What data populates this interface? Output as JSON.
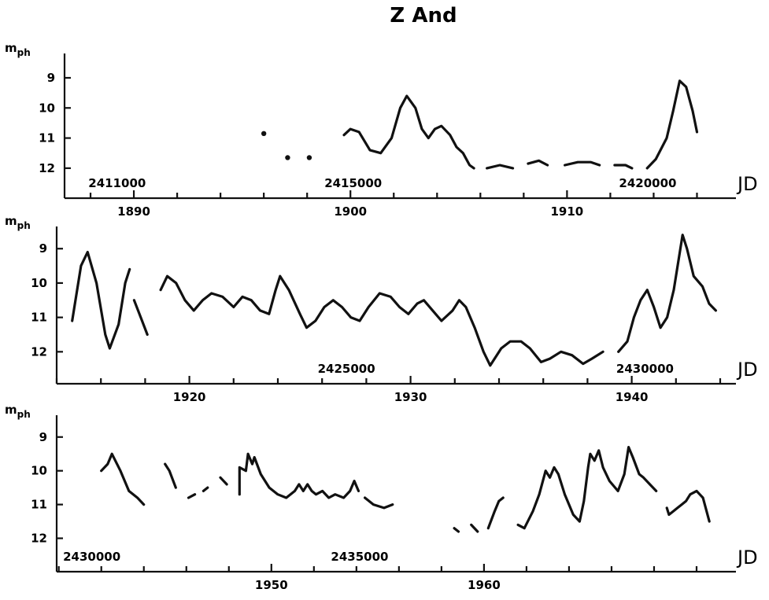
{
  "chart_data": {
    "type": "line",
    "title": "Z And",
    "x_unit_label": "JD",
    "panels": [
      {
        "ylabel": "m",
        "ylabel_sub": "ph",
        "xlim": [
          1886.8,
          1917.0
        ],
        "ylim_inverted": [
          12.5,
          8.4
        ],
        "yticks": [
          "9",
          "10",
          "11",
          "12"
        ],
        "xtick_labels": [
          {
            "x": 1890,
            "label": "1890"
          },
          {
            "x": 1900,
            "label": "1900"
          },
          {
            "x": 1910,
            "label": "1910"
          }
        ],
        "jd_labels": [
          {
            "x": 1887.9,
            "label": "2411000"
          },
          {
            "x": 1898.8,
            "label": "2415000"
          },
          {
            "x": 1912.4,
            "label": "2420000"
          }
        ],
        "points": [
          [
            1896.0,
            10.85
          ],
          [
            1897.1,
            11.65
          ],
          [
            1898.1,
            11.65
          ]
        ],
        "series": [
          [
            [
              1899.7,
              10.9
            ],
            [
              1900.0,
              10.7
            ],
            [
              1900.4,
              10.8
            ],
            [
              1900.9,
              11.4
            ],
            [
              1901.4,
              11.5
            ],
            [
              1901.9,
              11.0
            ],
            [
              1902.3,
              10.0
            ],
            [
              1902.6,
              9.6
            ],
            [
              1903.0,
              10.0
            ],
            [
              1903.3,
              10.7
            ],
            [
              1903.6,
              11.0
            ],
            [
              1903.9,
              10.7
            ],
            [
              1904.2,
              10.6
            ],
            [
              1904.6,
              10.9
            ],
            [
              1904.9,
              11.3
            ],
            [
              1905.2,
              11.5
            ],
            [
              1905.5,
              11.9
            ],
            [
              1905.7,
              12.0
            ]
          ],
          [
            [
              1906.3,
              12.0
            ],
            [
              1906.9,
              11.9
            ],
            [
              1907.5,
              12.0
            ]
          ],
          [
            [
              1908.2,
              11.85
            ],
            [
              1908.7,
              11.75
            ],
            [
              1909.1,
              11.9
            ]
          ],
          [
            [
              1909.9,
              11.9
            ],
            [
              1910.5,
              11.8
            ],
            [
              1911.1,
              11.8
            ],
            [
              1911.5,
              11.9
            ]
          ],
          [
            [
              1912.2,
              11.9
            ],
            [
              1912.7,
              11.9
            ],
            [
              1913.0,
              12.0
            ]
          ],
          [
            [
              1913.7,
              12.0
            ],
            [
              1914.1,
              11.7
            ],
            [
              1914.6,
              11.0
            ],
            [
              1914.9,
              10.1
            ],
            [
              1915.2,
              9.1
            ],
            [
              1915.5,
              9.3
            ],
            [
              1915.8,
              10.1
            ],
            [
              1916.0,
              10.8
            ]
          ]
        ]
      },
      {
        "ylabel": "m",
        "ylabel_sub": "ph",
        "xlim": [
          1914.0,
          1944.0
        ],
        "ylim_inverted": [
          12.45,
          8.4
        ],
        "yticks": [
          "9",
          "10",
          "11",
          "12"
        ],
        "xtick_labels": [
          {
            "x": 1920,
            "label": "1920"
          },
          {
            "x": 1930,
            "label": "1930"
          },
          {
            "x": 1940,
            "label": "1940"
          }
        ],
        "jd_labels": [
          {
            "x": 1925.8,
            "label": "2425000"
          },
          {
            "x": 1939.3,
            "label": "2430000"
          }
        ],
        "points": [],
        "series": [
          [
            [
              1914.7,
              11.1
            ],
            [
              1915.1,
              9.5
            ],
            [
              1915.4,
              9.1
            ],
            [
              1915.8,
              10.0
            ],
            [
              1916.2,
              11.5
            ],
            [
              1916.4,
              11.9
            ],
            [
              1916.8,
              11.2
            ],
            [
              1917.1,
              10.0
            ],
            [
              1917.3,
              9.6
            ]
          ],
          [
            [
              1917.5,
              10.5
            ],
            [
              1917.8,
              11.0
            ],
            [
              1918.1,
              11.5
            ]
          ],
          [
            [
              1918.7,
              10.2
            ],
            [
              1919.0,
              9.8
            ],
            [
              1919.4,
              10.0
            ],
            [
              1919.8,
              10.5
            ],
            [
              1920.2,
              10.8
            ],
            [
              1920.6,
              10.5
            ],
            [
              1921.0,
              10.3
            ],
            [
              1921.5,
              10.4
            ],
            [
              1922.0,
              10.7
            ],
            [
              1922.4,
              10.4
            ],
            [
              1922.8,
              10.5
            ],
            [
              1923.2,
              10.8
            ],
            [
              1923.6,
              10.9
            ],
            [
              1923.9,
              10.2
            ],
            [
              1924.1,
              9.8
            ],
            [
              1924.5,
              10.2
            ],
            [
              1925.0,
              10.9
            ],
            [
              1925.3,
              11.3
            ],
            [
              1925.7,
              11.1
            ],
            [
              1926.1,
              10.7
            ],
            [
              1926.5,
              10.5
            ],
            [
              1926.9,
              10.7
            ],
            [
              1927.3,
              11.0
            ],
            [
              1927.7,
              11.1
            ],
            [
              1928.1,
              10.7
            ],
            [
              1928.6,
              10.3
            ],
            [
              1929.1,
              10.4
            ],
            [
              1929.5,
              10.7
            ],
            [
              1929.9,
              10.9
            ],
            [
              1930.3,
              10.6
            ],
            [
              1930.6,
              10.5
            ],
            [
              1931.0,
              10.8
            ],
            [
              1931.4,
              11.1
            ],
            [
              1931.9,
              10.8
            ],
            [
              1932.2,
              10.5
            ],
            [
              1932.5,
              10.7
            ],
            [
              1932.9,
              11.3
            ],
            [
              1933.3,
              12.0
            ],
            [
              1933.6,
              12.4
            ],
            [
              1934.1,
              11.9
            ],
            [
              1934.5,
              11.7
            ],
            [
              1935.0,
              11.7
            ],
            [
              1935.4,
              11.9
            ],
            [
              1935.9,
              12.3
            ],
            [
              1936.3,
              12.2
            ],
            [
              1936.8,
              12.0
            ],
            [
              1937.3,
              12.1
            ],
            [
              1937.8,
              12.35
            ],
            [
              1938.2,
              12.2
            ],
            [
              1938.7,
              12.0
            ]
          ],
          [
            [
              1939.4,
              12.0
            ],
            [
              1939.8,
              11.7
            ],
            [
              1940.1,
              11.0
            ],
            [
              1940.4,
              10.5
            ],
            [
              1940.7,
              10.2
            ],
            [
              1941.0,
              10.7
            ],
            [
              1941.3,
              11.3
            ],
            [
              1941.6,
              11.0
            ],
            [
              1941.9,
              10.2
            ],
            [
              1942.1,
              9.4
            ],
            [
              1942.3,
              8.6
            ],
            [
              1942.5,
              9.0
            ],
            [
              1942.8,
              9.8
            ],
            [
              1943.2,
              10.1
            ],
            [
              1943.5,
              10.6
            ],
            [
              1943.8,
              10.8
            ]
          ]
        ]
      },
      {
        "ylabel": "m",
        "ylabel_sub": "ph",
        "xlim": [
          1939.9,
          1971.0
        ],
        "ylim_inverted": [
          12.5,
          8.4
        ],
        "yticks": [
          "9",
          "10",
          "11",
          "12"
        ],
        "xtick_labels": [
          {
            "x": 1950,
            "label": "1950"
          },
          {
            "x": 1960,
            "label": "1960"
          }
        ],
        "jd_labels": [
          {
            "x": 1940.2,
            "label": "2430000"
          },
          {
            "x": 1952.8,
            "label": "2435000"
          }
        ],
        "points": [],
        "series": [
          [
            [
              1942.0,
              10.0
            ],
            [
              1942.3,
              9.8
            ],
            [
              1942.5,
              9.5
            ],
            [
              1942.9,
              10.0
            ],
            [
              1943.3,
              10.6
            ],
            [
              1943.7,
              10.8
            ],
            [
              1944.0,
              11.0
            ]
          ],
          [
            [
              1945.0,
              9.8
            ],
            [
              1945.2,
              10.0
            ],
            [
              1945.5,
              10.5
            ]
          ],
          [
            [
              1946.1,
              10.8
            ],
            [
              1946.4,
              10.7
            ]
          ],
          [
            [
              1946.8,
              10.6
            ],
            [
              1947.0,
              10.5
            ]
          ],
          [
            [
              1947.6,
              10.2
            ],
            [
              1947.9,
              10.4
            ]
          ],
          [
            [
              1948.5,
              10.7
            ],
            [
              1948.5,
              9.9
            ],
            [
              1948.8,
              10.0
            ],
            [
              1948.9,
              9.5
            ],
            [
              1949.1,
              9.8
            ],
            [
              1949.2,
              9.6
            ],
            [
              1949.5,
              10.1
            ],
            [
              1949.9,
              10.5
            ],
            [
              1950.3,
              10.7
            ],
            [
              1950.7,
              10.8
            ],
            [
              1951.1,
              10.6
            ],
            [
              1951.3,
              10.4
            ],
            [
              1951.5,
              10.6
            ],
            [
              1951.7,
              10.4
            ],
            [
              1951.9,
              10.6
            ],
            [
              1952.1,
              10.7
            ],
            [
              1952.4,
              10.6
            ],
            [
              1952.7,
              10.8
            ],
            [
              1953.0,
              10.7
            ],
            [
              1953.4,
              10.8
            ],
            [
              1953.7,
              10.6
            ],
            [
              1953.9,
              10.3
            ],
            [
              1954.1,
              10.6
            ]
          ],
          [
            [
              1954.4,
              10.8
            ],
            [
              1954.8,
              11.0
            ],
            [
              1955.3,
              11.1
            ],
            [
              1955.7,
              11.0
            ]
          ],
          [
            [
              1958.6,
              11.7
            ],
            [
              1958.8,
              11.8
            ]
          ],
          [
            [
              1959.4,
              11.6
            ],
            [
              1959.7,
              11.8
            ]
          ],
          [
            [
              1960.2,
              11.7
            ],
            [
              1960.5,
              11.2
            ],
            [
              1960.7,
              10.9
            ],
            [
              1960.9,
              10.8
            ]
          ],
          [
            [
              1961.6,
              11.6
            ],
            [
              1961.9,
              11.7
            ],
            [
              1962.3,
              11.2
            ],
            [
              1962.6,
              10.7
            ],
            [
              1962.9,
              10.0
            ],
            [
              1963.1,
              10.2
            ],
            [
              1963.3,
              9.9
            ],
            [
              1963.5,
              10.1
            ],
            [
              1963.8,
              10.7
            ],
            [
              1964.2,
              11.3
            ],
            [
              1964.5,
              11.5
            ],
            [
              1964.7,
              10.9
            ],
            [
              1964.9,
              9.9
            ],
            [
              1965.0,
              9.5
            ],
            [
              1965.2,
              9.7
            ],
            [
              1965.4,
              9.4
            ],
            [
              1965.6,
              9.9
            ],
            [
              1965.9,
              10.3
            ],
            [
              1966.3,
              10.6
            ],
            [
              1966.6,
              10.1
            ],
            [
              1966.8,
              9.3
            ],
            [
              1967.0,
              9.6
            ],
            [
              1967.3,
              10.1
            ],
            [
              1967.5,
              10.2
            ],
            [
              1967.8,
              10.4
            ],
            [
              1968.1,
              10.6
            ]
          ],
          [
            [
              1968.6,
              11.1
            ],
            [
              1968.7,
              11.3
            ],
            [
              1968.9,
              11.2
            ],
            [
              1969.1,
              11.1
            ],
            [
              1969.3,
              11.0
            ],
            [
              1969.5,
              10.9
            ],
            [
              1969.7,
              10.7
            ],
            [
              1970.0,
              10.6
            ],
            [
              1970.3,
              10.8
            ],
            [
              1970.6,
              11.5
            ]
          ]
        ]
      }
    ]
  }
}
